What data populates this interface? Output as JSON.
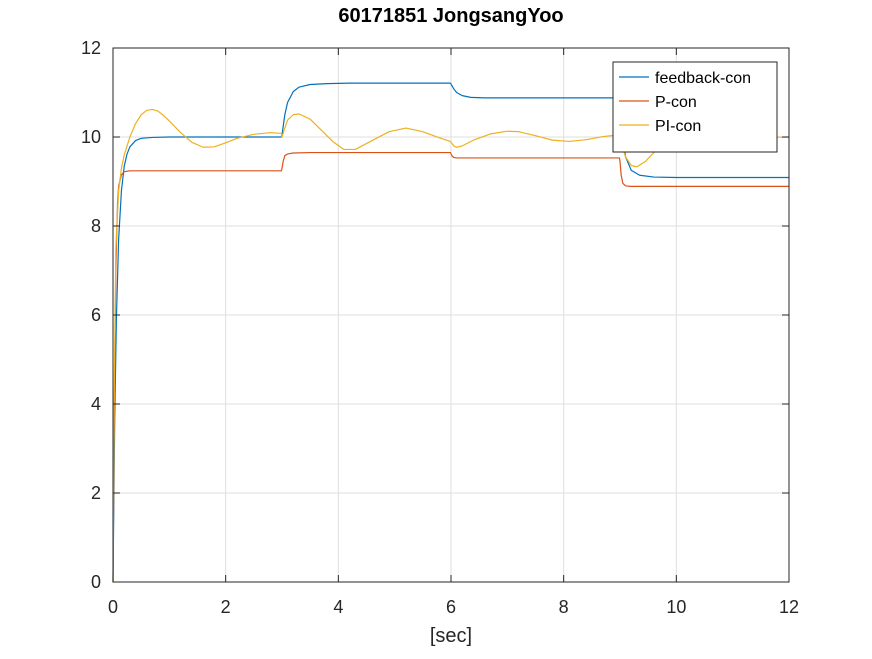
{
  "chart_data": {
    "type": "line",
    "title": "60171851 JongsangYoo",
    "xlabel": "[sec]",
    "ylabel": "",
    "xlim": [
      0,
      12
    ],
    "ylim": [
      0,
      12
    ],
    "xticks": [
      0,
      2,
      4,
      6,
      8,
      10,
      12
    ],
    "yticks": [
      0,
      2,
      4,
      6,
      8,
      10,
      12
    ],
    "xtick_labels": [
      "0",
      "2",
      "4",
      "6",
      "8",
      "10",
      "12"
    ],
    "ytick_labels": [
      "0",
      "2",
      "4",
      "6",
      "8",
      "10",
      "12"
    ],
    "grid": true,
    "legend_position": "top-right",
    "series": [
      {
        "name": "feedback-con",
        "color": "#0072BD",
        "x": [
          0,
          0.03,
          0.06,
          0.1,
          0.15,
          0.2,
          0.25,
          0.3,
          0.4,
          0.5,
          0.7,
          1.0,
          2.0,
          2.99,
          3.0,
          3.05,
          3.1,
          3.2,
          3.3,
          3.5,
          3.8,
          4.2,
          5.0,
          5.99,
          6.0,
          6.05,
          6.1,
          6.2,
          6.35,
          6.6,
          7.0,
          8.0,
          8.99,
          9.0,
          9.05,
          9.1,
          9.2,
          9.35,
          9.6,
          10.0,
          11.0,
          12.0
        ],
        "y": [
          0,
          3.6,
          5.9,
          7.7,
          8.8,
          9.35,
          9.62,
          9.78,
          9.92,
          9.97,
          9.99,
          10.0,
          10.0,
          10.0,
          10.05,
          10.5,
          10.78,
          11.02,
          11.12,
          11.18,
          11.2,
          11.21,
          11.21,
          11.21,
          11.19,
          11.08,
          11.0,
          10.93,
          10.89,
          10.88,
          10.88,
          10.88,
          10.88,
          10.7,
          9.95,
          9.55,
          9.25,
          9.14,
          9.1,
          9.09,
          9.09,
          9.09
        ]
      },
      {
        "name": "P-con",
        "color": "#D95319",
        "x": [
          0,
          0.02,
          0.05,
          0.08,
          0.1,
          0.15,
          0.2,
          0.3,
          0.5,
          1.0,
          2.0,
          2.99,
          3.0,
          3.02,
          3.05,
          3.1,
          3.2,
          3.5,
          4.0,
          5.0,
          5.99,
          6.0,
          6.02,
          6.05,
          6.1,
          6.2,
          6.5,
          7.0,
          8.0,
          8.99,
          9.0,
          9.02,
          9.05,
          9.1,
          9.2,
          9.5,
          10.0,
          11.0,
          12.0
        ],
        "y": [
          0,
          3.5,
          7.0,
          8.5,
          8.9,
          9.15,
          9.22,
          9.24,
          9.24,
          9.24,
          9.24,
          9.24,
          9.3,
          9.45,
          9.58,
          9.62,
          9.64,
          9.65,
          9.65,
          9.65,
          9.65,
          9.62,
          9.57,
          9.54,
          9.53,
          9.53,
          9.53,
          9.53,
          9.53,
          9.53,
          9.45,
          9.15,
          8.96,
          8.9,
          8.89,
          8.89,
          8.89,
          8.89,
          8.89
        ]
      },
      {
        "name": "PI-con",
        "color": "#EDB120",
        "x": [
          0,
          0.02,
          0.05,
          0.1,
          0.15,
          0.2,
          0.3,
          0.4,
          0.5,
          0.6,
          0.7,
          0.8,
          0.9,
          1.0,
          1.2,
          1.4,
          1.6,
          1.8,
          2.0,
          2.2,
          2.5,
          2.8,
          2.99,
          3.0,
          3.05,
          3.1,
          3.2,
          3.3,
          3.5,
          3.7,
          3.9,
          4.1,
          4.3,
          4.6,
          4.9,
          5.2,
          5.5,
          5.8,
          5.99,
          6.0,
          6.05,
          6.1,
          6.2,
          6.4,
          6.7,
          7.0,
          7.2,
          7.5,
          7.8,
          8.1,
          8.4,
          8.7,
          8.99,
          9.0,
          9.05,
          9.1,
          9.2,
          9.3,
          9.45,
          9.6,
          9.8,
          10.0,
          10.5,
          11.0,
          11.5,
          12.0
        ],
        "y": [
          0,
          4.0,
          7.5,
          8.8,
          9.3,
          9.6,
          10.0,
          10.3,
          10.5,
          10.6,
          10.62,
          10.58,
          10.48,
          10.36,
          10.1,
          9.88,
          9.77,
          9.78,
          9.87,
          9.97,
          10.06,
          10.1,
          10.08,
          10.0,
          10.2,
          10.38,
          10.5,
          10.52,
          10.4,
          10.15,
          9.9,
          9.72,
          9.72,
          9.92,
          10.12,
          10.2,
          10.12,
          9.98,
          9.9,
          9.88,
          9.8,
          9.77,
          9.8,
          9.93,
          10.07,
          10.13,
          10.12,
          10.03,
          9.93,
          9.9,
          9.94,
          10.01,
          10.05,
          10.0,
          9.75,
          9.55,
          9.36,
          9.33,
          9.45,
          9.65,
          9.85,
          9.98,
          10.04,
          10.0,
          9.99,
          10.0
        ]
      }
    ]
  }
}
